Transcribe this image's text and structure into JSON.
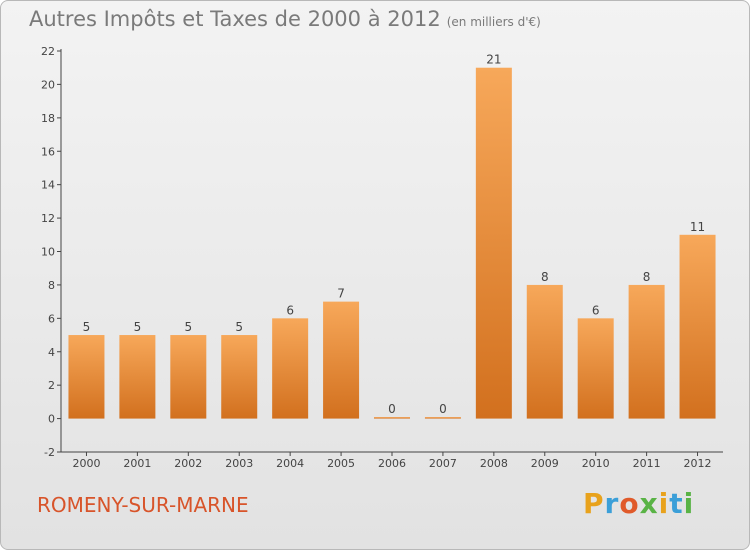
{
  "title": "Autres Impôts et Taxes de 2000 à 2012",
  "title_unit": "(en milliers d'€)",
  "place": "ROMENY-SUR-MARNE",
  "logo": "Proxiti",
  "colors": {
    "bar_light": "#f7a85a",
    "bar_dark": "#d2701e",
    "title": "#7a7a7a",
    "place": "#d8542a"
  },
  "chart_data": {
    "type": "bar",
    "title": "Autres Impôts et Taxes de 2000 à 2012",
    "subtitle": "(en milliers d'€)",
    "categories": [
      "2000",
      "2001",
      "2002",
      "2003",
      "2004",
      "2005",
      "2006",
      "2007",
      "2008",
      "2009",
      "2010",
      "2011",
      "2012"
    ],
    "values": [
      5,
      5,
      5,
      5,
      6,
      7,
      0,
      0,
      21,
      8,
      6,
      8,
      11
    ],
    "data_labels": [
      "5",
      "5",
      "5",
      "5",
      "6",
      "7",
      "0",
      "0",
      "21",
      "8",
      "6",
      "8",
      "11"
    ],
    "ylim": [
      -2,
      22
    ],
    "yticks": [
      -2,
      0,
      2,
      4,
      6,
      8,
      10,
      12,
      14,
      16,
      18,
      20,
      22
    ],
    "xlabel": "",
    "ylabel": "",
    "grid": false,
    "legend": "none"
  }
}
